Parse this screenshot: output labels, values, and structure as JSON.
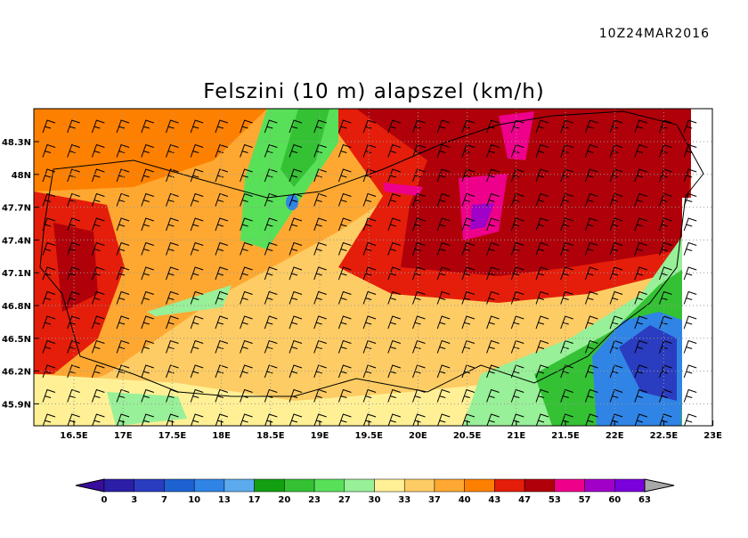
{
  "header": {
    "timestamp": "10Z24MAR2016",
    "title": "Felszini (10 m) alapszel (km/h)"
  },
  "map": {
    "x_labels": [
      "16.5E",
      "17E",
      "17.5E",
      "18E",
      "18.5E",
      "19E",
      "19.5E",
      "20E",
      "20.5E",
      "21E",
      "21.5E",
      "22E",
      "22.5E",
      "23E"
    ],
    "y_labels": [
      "48.3N",
      "48N",
      "47.7N",
      "47.4N",
      "47.1N",
      "46.8N",
      "46.5N",
      "46.2N",
      "45.9N"
    ]
  },
  "colorbar": {
    "labels": [
      0,
      3,
      7,
      10,
      13,
      17,
      20,
      23,
      27,
      30,
      33,
      37,
      40,
      43,
      47,
      53,
      57,
      60,
      63
    ],
    "colors": [
      "#2a1fa6",
      "#2a3cc0",
      "#1e62d2",
      "#2f84e6",
      "#5caaee",
      "#12a012",
      "#34c234",
      "#58e058",
      "#98f098",
      "#fff096",
      "#fecc64",
      "#fea832",
      "#fe8000",
      "#e41e0a",
      "#b0000a",
      "#ee008a",
      "#a000c8",
      "#7a00dc"
    ],
    "under_color": "#3a0c9c",
    "over_color": "#a8a8a8"
  }
}
